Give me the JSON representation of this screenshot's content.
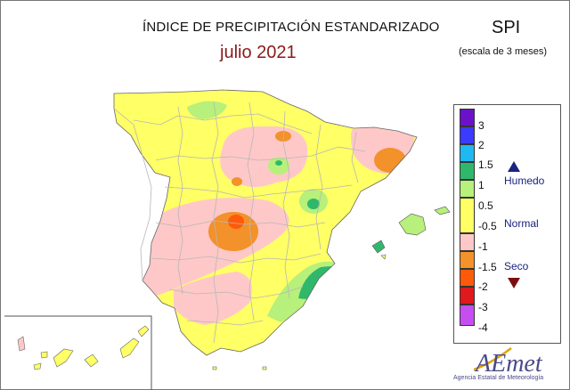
{
  "header": {
    "title": "ÍNDICE DE PRECIPITACIÓN ESTANDARIZADO",
    "subtitle": "julio 2021",
    "index_name": "SPI",
    "index_scale": "(escala de 3 meses)"
  },
  "legend": {
    "ticks": [
      "3",
      "2",
      "1.5",
      "1",
      "0.5",
      "-0.5",
      "-1",
      "-1.5",
      "-2",
      "-3",
      "-4"
    ],
    "colors": [
      "#6b12c9",
      "#3b3bff",
      "#1fb8f0",
      "#2fb86b",
      "#b7f07a",
      "#ffff66",
      "#ffc8c8",
      "#f3912a",
      "#ff5a0a",
      "#e0191e",
      "#c64ef0"
    ],
    "categories": {
      "wet": "Humedo",
      "normal": "Normal",
      "dry": "Seco"
    }
  },
  "logo": {
    "text": "AEmet",
    "caption": "Agencia Estatal de Meteorología"
  },
  "colors": {
    "normal": "#ffff66",
    "slightly_dry": "#ffc8c8",
    "dry": "#f3912a",
    "very_dry": "#ff5a0a",
    "slightly_wet": "#b7f07a",
    "wet": "#2fb86b",
    "title_accent": "#8b1a1a",
    "category_text": "#1a237e"
  }
}
